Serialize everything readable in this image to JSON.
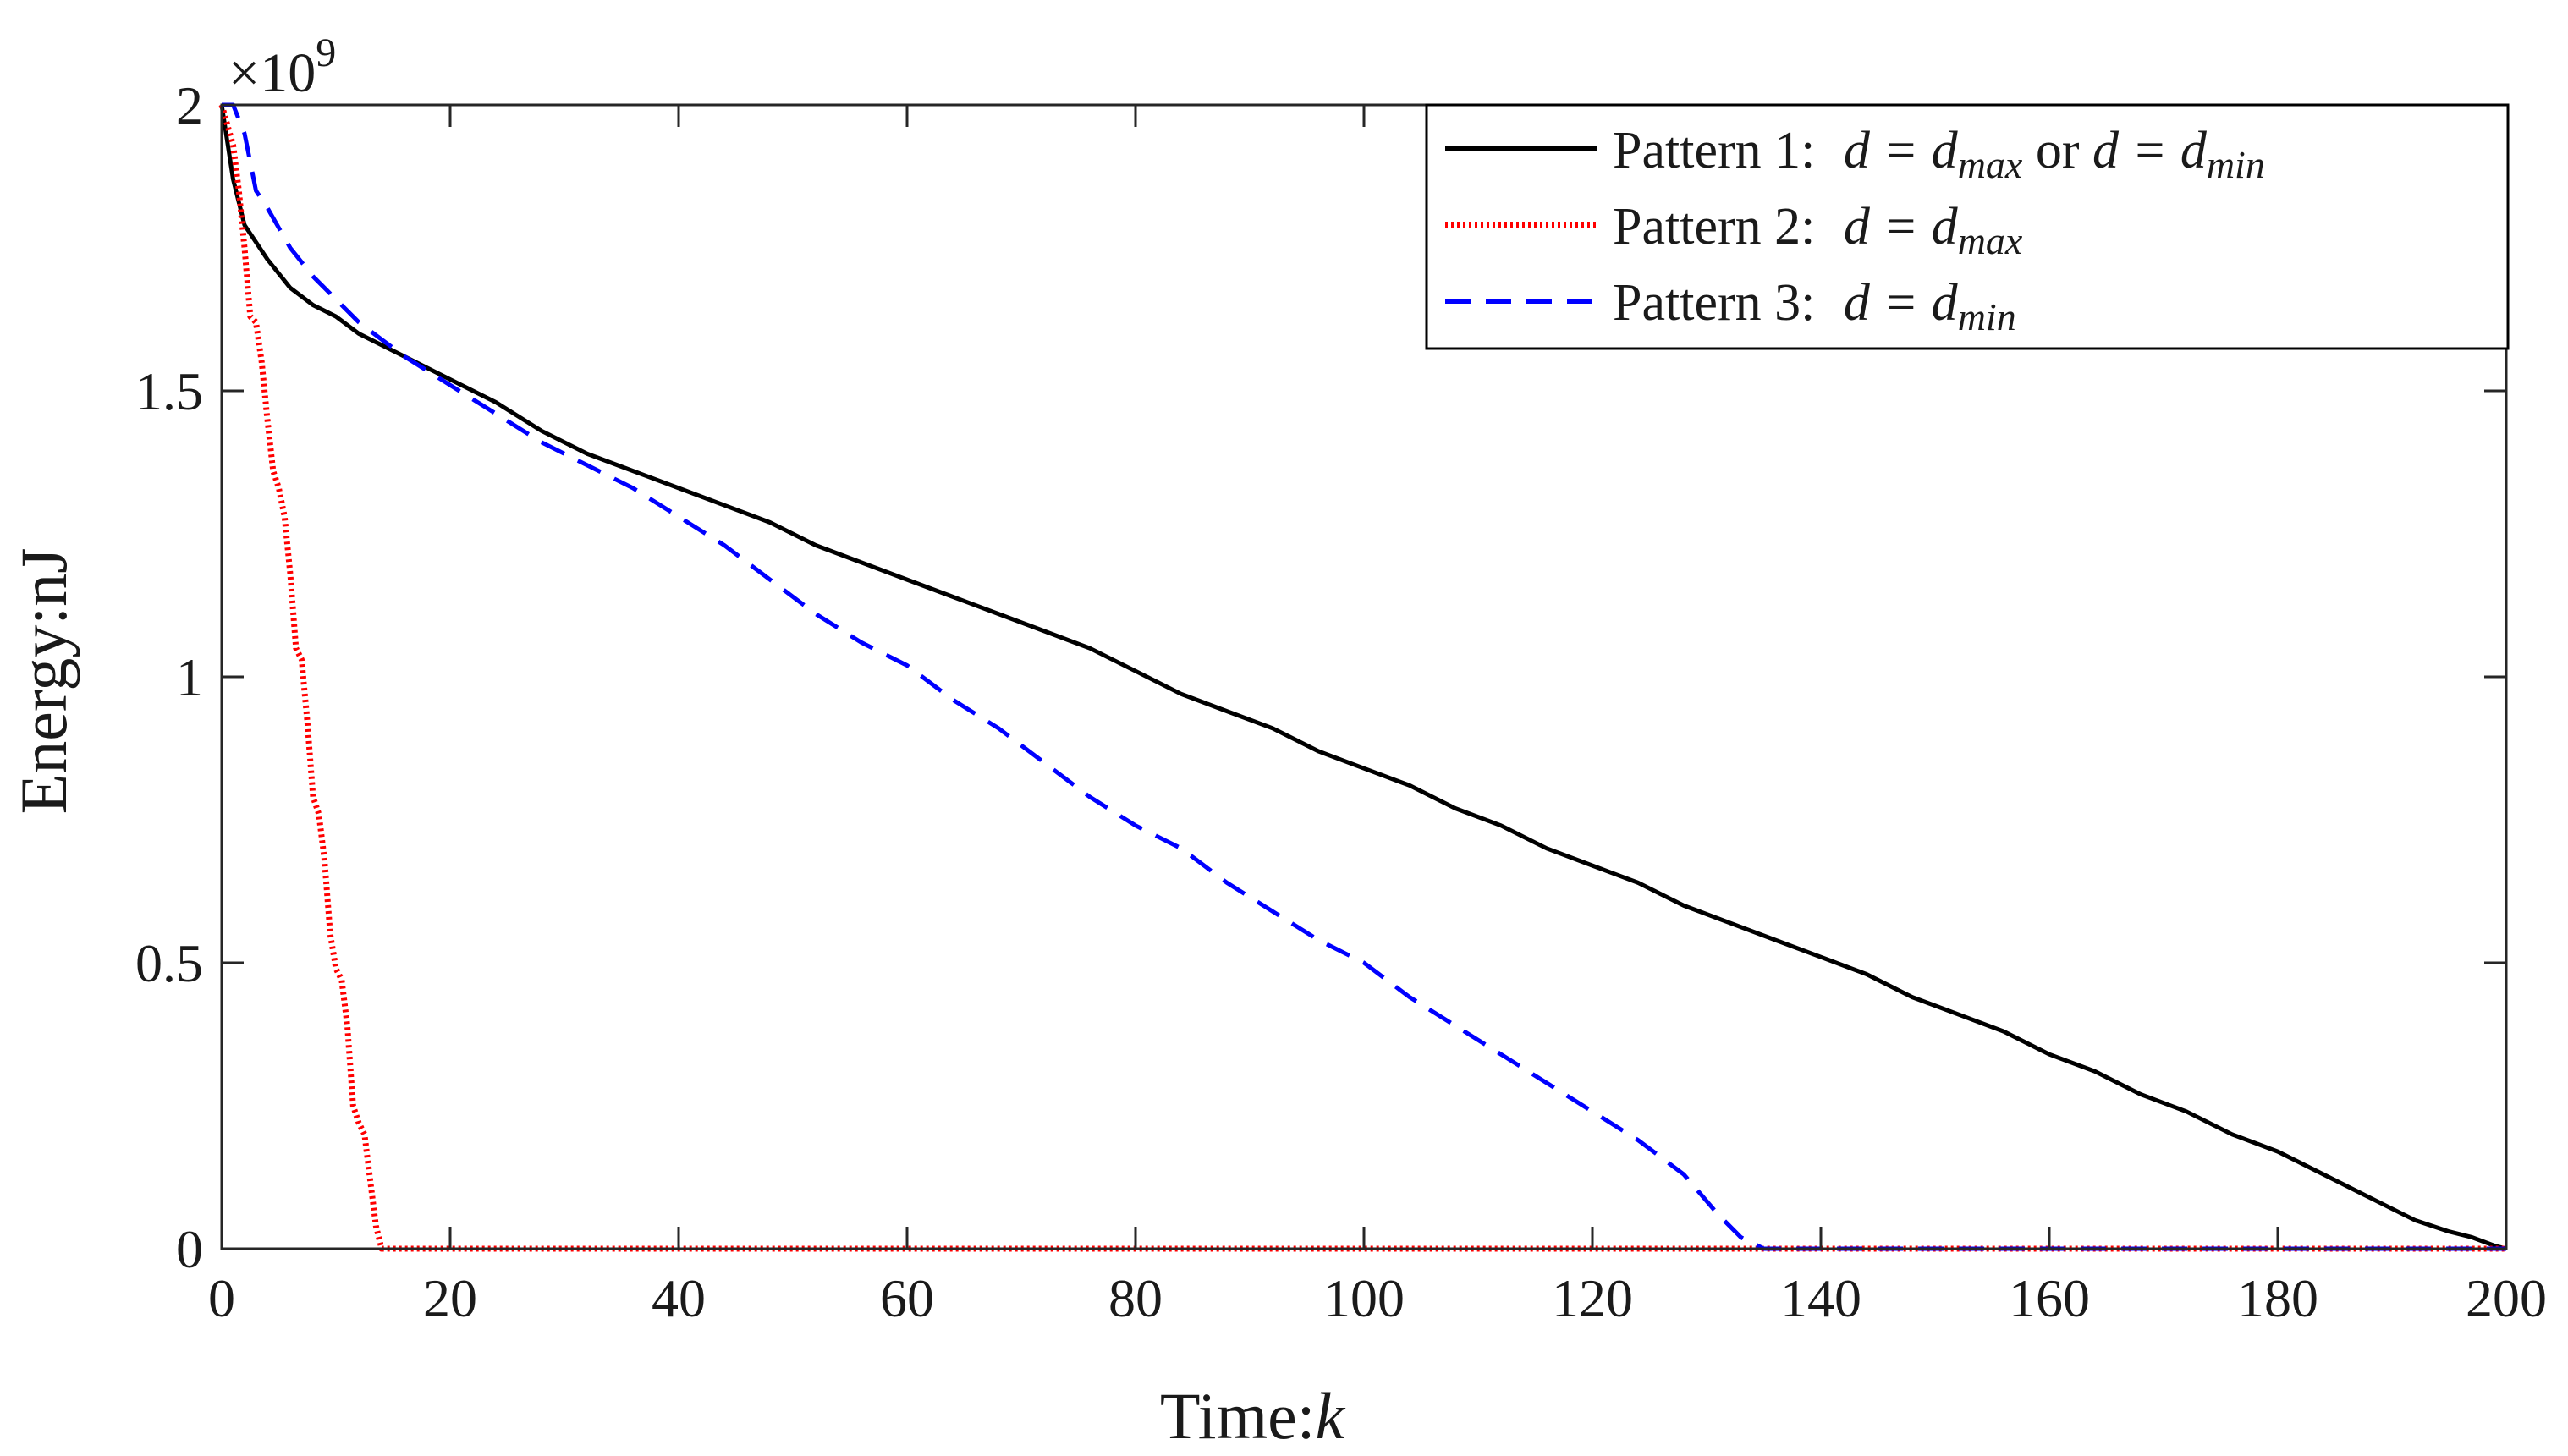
{
  "chart_data": {
    "type": "line",
    "title": "",
    "xlabel": "Time:",
    "xlabel_var": "k",
    "ylabel": "Energy:nJ",
    "y_exponent_prefix": "×10",
    "y_exponent_power": "9",
    "xlim": [
      0,
      200
    ],
    "ylim": [
      0,
      2
    ],
    "x_ticks": [
      0,
      20,
      40,
      60,
      80,
      100,
      120,
      140,
      160,
      180,
      200
    ],
    "x_tick_labels": [
      "0",
      "20",
      "40",
      "60",
      "80",
      "100",
      "120",
      "140",
      "160",
      "180",
      "200"
    ],
    "y_ticks": [
      0,
      0.5,
      1,
      1.5,
      2
    ],
    "y_tick_labels": [
      "0",
      "0.5",
      "1",
      "1.5",
      "2"
    ],
    "grid": false,
    "legend_position": "top-right",
    "series": [
      {
        "name": "Pattern 1",
        "legend_prefix": "Pattern 1:",
        "legend_eq": "d = d",
        "legend_sub": "max",
        "legend_or": " or ",
        "legend_eq2": "d = d",
        "legend_sub2": "min",
        "color": "#000000",
        "style": "solid",
        "x": [
          0,
          1,
          2,
          4,
          6,
          8,
          10,
          12,
          14,
          16,
          20,
          24,
          28,
          32,
          36,
          40,
          44,
          48,
          52,
          56,
          60,
          64,
          68,
          72,
          76,
          80,
          84,
          88,
          92,
          96,
          100,
          104,
          108,
          112,
          116,
          120,
          124,
          128,
          132,
          136,
          140,
          144,
          148,
          152,
          156,
          160,
          164,
          168,
          172,
          176,
          180,
          184,
          188,
          192,
          195,
          197,
          199,
          200
        ],
        "y": [
          2.0,
          1.87,
          1.79,
          1.73,
          1.68,
          1.65,
          1.63,
          1.6,
          1.58,
          1.56,
          1.52,
          1.48,
          1.43,
          1.39,
          1.36,
          1.33,
          1.3,
          1.27,
          1.23,
          1.2,
          1.17,
          1.14,
          1.11,
          1.08,
          1.05,
          1.01,
          0.97,
          0.94,
          0.91,
          0.87,
          0.84,
          0.81,
          0.77,
          0.74,
          0.7,
          0.67,
          0.64,
          0.6,
          0.57,
          0.54,
          0.51,
          0.48,
          0.44,
          0.41,
          0.38,
          0.34,
          0.31,
          0.27,
          0.24,
          0.2,
          0.17,
          0.13,
          0.09,
          0.05,
          0.03,
          0.02,
          0.005,
          0.0
        ]
      },
      {
        "name": "Pattern 2",
        "legend_prefix": "Pattern 2:",
        "legend_eq": "d = d",
        "legend_sub": "max",
        "color": "#ff0000",
        "style": "dotted",
        "x": [
          0,
          1,
          1.5,
          2,
          2.5,
          3,
          3.5,
          4,
          4.5,
          5,
          5.5,
          6,
          6.5,
          7,
          7.5,
          8,
          8.5,
          9,
          9.5,
          10,
          10.5,
          11,
          11.5,
          12,
          12.5,
          13,
          13.5,
          14,
          15,
          20,
          40,
          60,
          80,
          100,
          120,
          140,
          160,
          180,
          200
        ],
        "y": [
          2.0,
          1.93,
          1.85,
          1.75,
          1.63,
          1.62,
          1.55,
          1.45,
          1.36,
          1.33,
          1.28,
          1.18,
          1.05,
          1.03,
          0.92,
          0.79,
          0.76,
          0.68,
          0.55,
          0.49,
          0.47,
          0.39,
          0.25,
          0.22,
          0.2,
          0.12,
          0.04,
          0.0,
          0.0,
          0.0,
          0.0,
          0.0,
          0.0,
          0.0,
          0.0,
          0.0,
          0.0,
          0.0,
          0.0
        ]
      },
      {
        "name": "Pattern 3",
        "legend_prefix": "Pattern 3:",
        "legend_eq": "d = d",
        "legend_sub": "min",
        "color": "#0000ff",
        "style": "dashed",
        "x": [
          0,
          1,
          2,
          3,
          4,
          6,
          8,
          10,
          12,
          14,
          16,
          20,
          24,
          28,
          32,
          36,
          40,
          44,
          48,
          52,
          56,
          60,
          64,
          68,
          72,
          76,
          80,
          84,
          88,
          92,
          96,
          100,
          104,
          108,
          112,
          116,
          120,
          124,
          128,
          131,
          133,
          135,
          140,
          160,
          180,
          200
        ],
        "y": [
          2.0,
          2.0,
          1.95,
          1.85,
          1.82,
          1.75,
          1.7,
          1.66,
          1.62,
          1.59,
          1.56,
          1.51,
          1.46,
          1.41,
          1.37,
          1.33,
          1.28,
          1.23,
          1.17,
          1.11,
          1.06,
          1.02,
          0.96,
          0.91,
          0.85,
          0.79,
          0.74,
          0.7,
          0.64,
          0.59,
          0.54,
          0.5,
          0.44,
          0.39,
          0.34,
          0.29,
          0.24,
          0.19,
          0.13,
          0.06,
          0.02,
          0.0,
          0.0,
          0.0,
          0.0,
          0.0
        ]
      }
    ]
  }
}
